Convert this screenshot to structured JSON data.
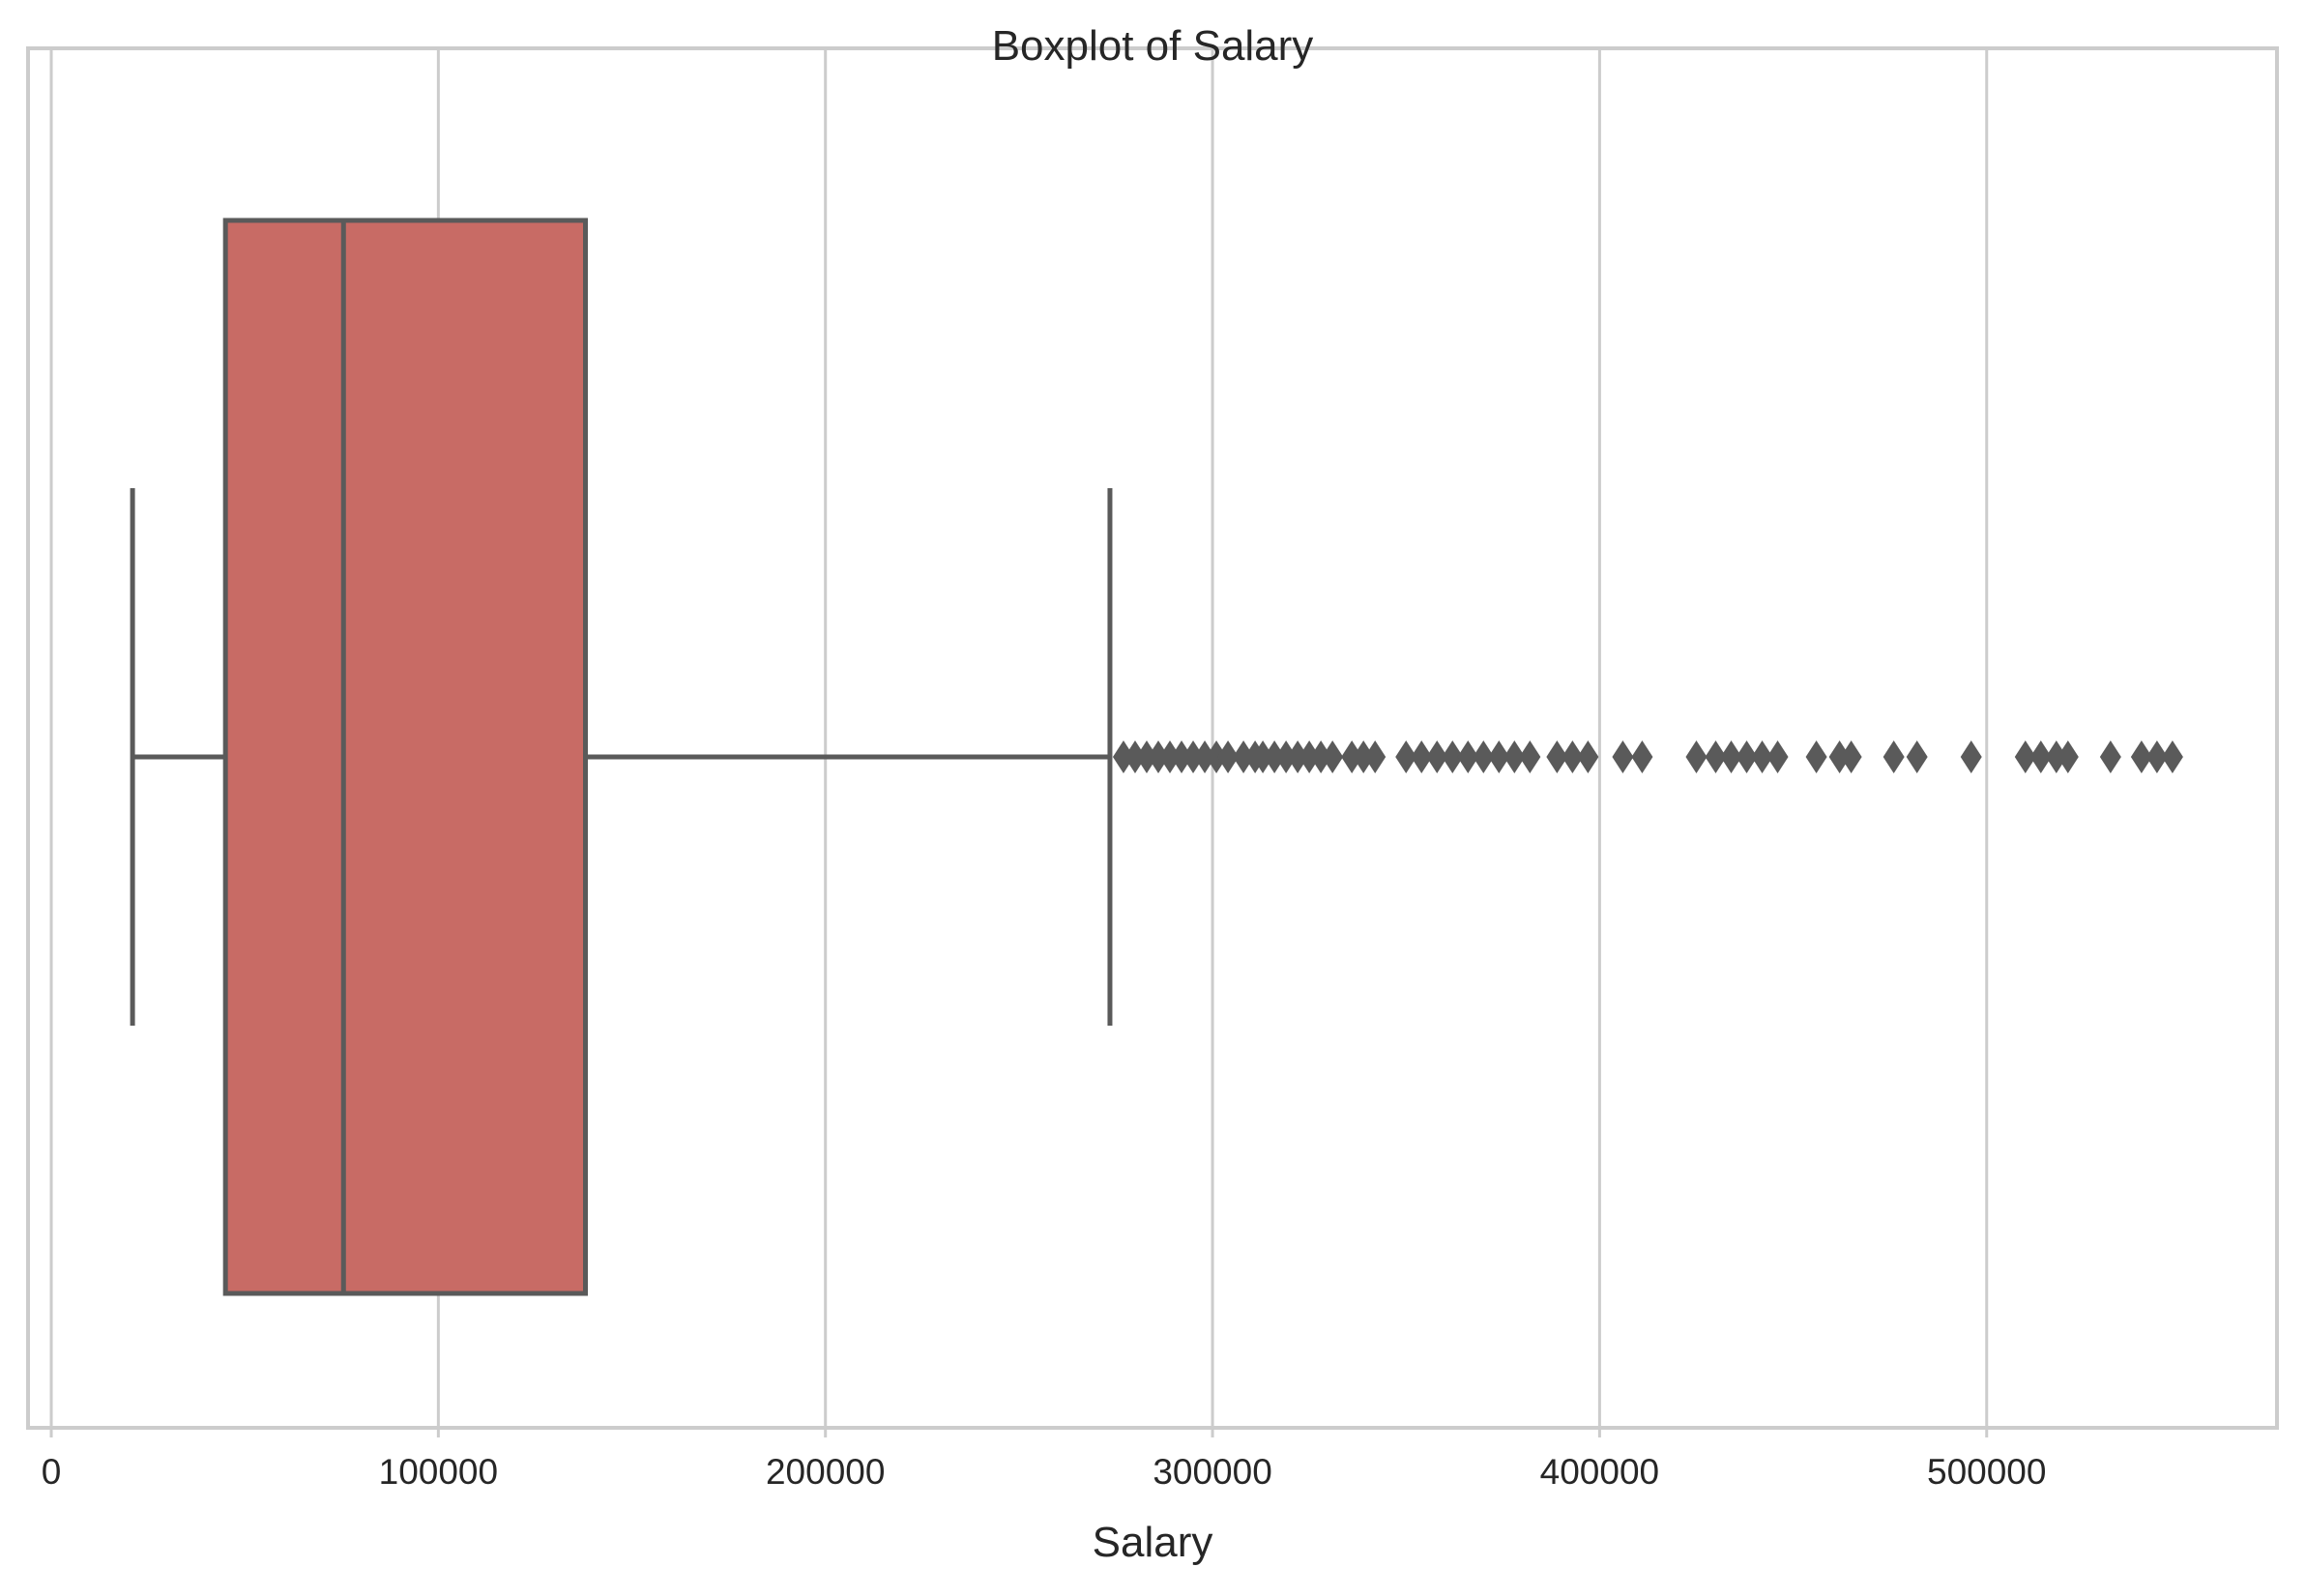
{
  "chart_data": {
    "type": "boxplot",
    "title": "Boxplot of Salary",
    "xlabel": "Salary",
    "ylabel": "",
    "orientation": "horizontal",
    "xlim": [
      -6000,
      575000
    ],
    "xticks": [
      0,
      100000,
      200000,
      300000,
      400000,
      500000
    ],
    "xtick_labels": [
      "0",
      "100000",
      "200000",
      "300000",
      "400000",
      "500000"
    ],
    "grid": "vertical",
    "box_color": "#C86B65",
    "line_color": "#5A5A5A",
    "grid_color": "#CCCCCC",
    "frame_color": "#CCCCCC",
    "box": {
      "whisker_low": 21000,
      "q1": 45000,
      "median": 75500,
      "q3": 138000,
      "whisker_high": 273500
    },
    "outliers": [
      277000,
      280000,
      283000,
      286000,
      289000,
      292000,
      295000,
      298000,
      301000,
      304000,
      308000,
      311000,
      313000,
      316000,
      319000,
      322000,
      325000,
      328000,
      331000,
      336000,
      339000,
      342000,
      350000,
      354000,
      358000,
      362000,
      366000,
      370000,
      374000,
      378000,
      382000,
      389000,
      393000,
      397000,
      406000,
      411000,
      425000,
      430000,
      434000,
      438000,
      442000,
      446000,
      456000,
      462000,
      465000,
      476000,
      482000,
      496000,
      510000,
      514000,
      518000,
      521000,
      532000,
      540000,
      544000,
      548000
    ]
  }
}
